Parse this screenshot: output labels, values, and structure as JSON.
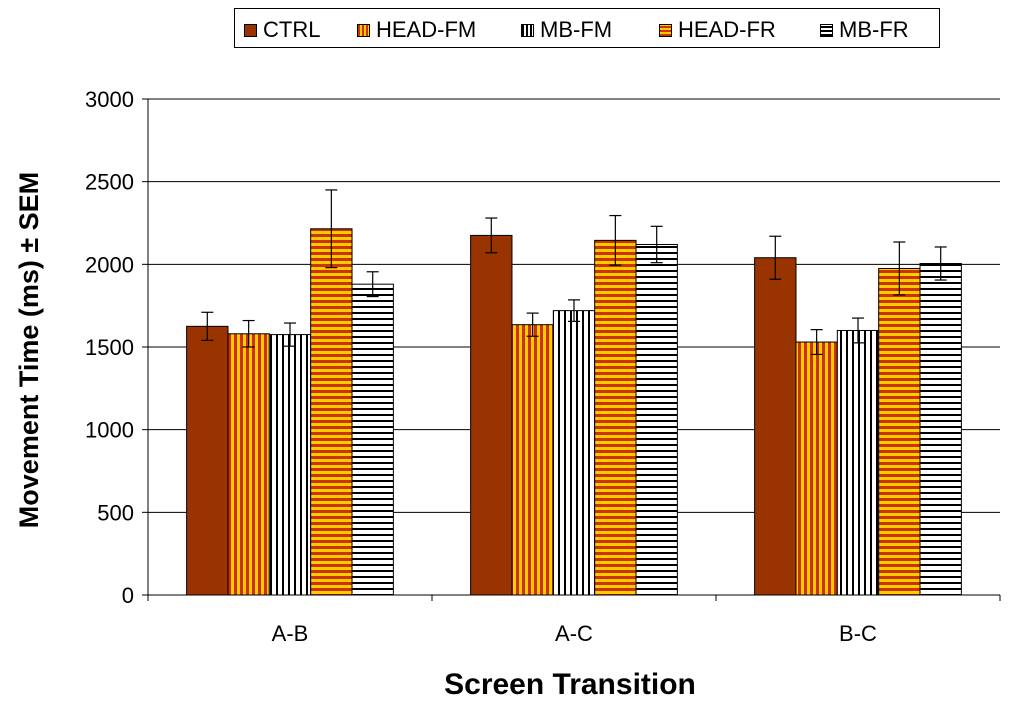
{
  "chart_data": {
    "type": "bar",
    "title": "",
    "xlabel": "Screen Transition",
    "ylabel": "Movement Time (ms) ± SEM",
    "categories": [
      "A-B",
      "A-C",
      "B-C"
    ],
    "ylim": [
      0,
      3000
    ],
    "yticks": [
      0,
      500,
      1000,
      1500,
      2000,
      2500,
      3000
    ],
    "grid": "horizontal",
    "legend_position": "top",
    "series": [
      {
        "name": "CTRL",
        "pattern": "solid",
        "values": [
          1625,
          2175,
          2040
        ],
        "errors": [
          85,
          105,
          130
        ]
      },
      {
        "name": "HEAD-FM",
        "pattern": "vertical-stripes",
        "values": [
          1580,
          1635,
          1530
        ],
        "errors": [
          80,
          70,
          75
        ]
      },
      {
        "name": "MB-FM",
        "pattern": "vertical-stripes",
        "values": [
          1575,
          1720,
          1600
        ],
        "errors": [
          70,
          65,
          75
        ]
      },
      {
        "name": "HEAD-FR",
        "pattern": "horizontal-stripes",
        "values": [
          2215,
          2145,
          1975
        ],
        "errors": [
          235,
          150,
          160
        ]
      },
      {
        "name": "MB-FR",
        "pattern": "horizontal-stripes",
        "values": [
          1880,
          2120,
          2005
        ],
        "errors": [
          75,
          110,
          100
        ]
      }
    ]
  },
  "colors": {
    "ctrl": "#993300",
    "head_primary": "#CC3300",
    "head_secondary": "#FFCC00",
    "mb_primary": "#000000",
    "mb_secondary": "#FFFFFF",
    "grid": "#000000"
  }
}
